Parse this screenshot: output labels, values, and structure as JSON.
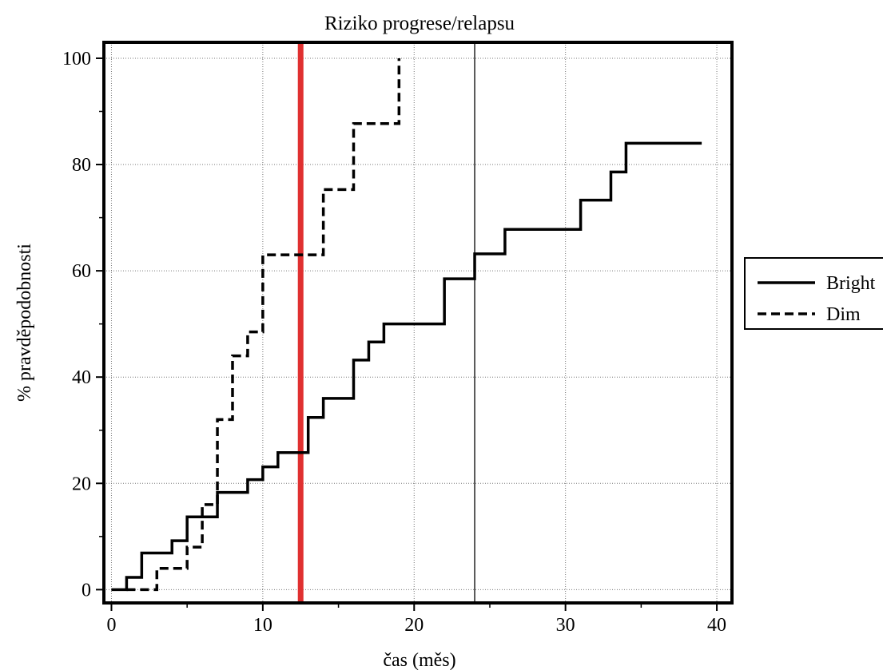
{
  "chart_data": {
    "type": "line",
    "step": true,
    "title": "Riziko progrese/relapsu",
    "xlabel": "čas (měs)",
    "ylabel": "% pravděpodobnosti",
    "xlim": [
      -0.5,
      41
    ],
    "ylim": [
      -2.5,
      103
    ],
    "xticks": [
      0,
      10,
      20,
      30,
      40
    ],
    "yticks": [
      0,
      20,
      40,
      60,
      80,
      100
    ],
    "grid": true,
    "legend": {
      "placement": "right",
      "entries": [
        "Bright",
        "Dim"
      ]
    },
    "series": [
      {
        "name": "Bright",
        "line_style": "solid",
        "color": "#000000",
        "x": [
          0,
          1,
          2,
          4,
          5,
          7,
          9,
          10,
          11,
          12,
          13,
          14,
          16,
          17,
          18,
          22,
          24,
          26,
          31,
          33,
          34,
          39
        ],
        "y": [
          0,
          2.3,
          6.9,
          9.2,
          13.7,
          18.3,
          20.7,
          23.1,
          25.8,
          25.8,
          32.4,
          36.0,
          43.2,
          46.6,
          50.0,
          58.5,
          63.2,
          67.8,
          73.3,
          78.6,
          84.0,
          84.0
        ]
      },
      {
        "name": "Dim",
        "line_style": "dashed",
        "color": "#000000",
        "x": [
          1,
          3,
          5,
          6,
          7,
          8,
          9,
          10,
          14,
          16,
          19,
          19
        ],
        "y": [
          0,
          4.0,
          8.0,
          16.0,
          32.0,
          44.0,
          48.5,
          63.0,
          75.3,
          87.7,
          87.7,
          100
        ]
      }
    ],
    "reference_lines": [
      {
        "axis": "x",
        "value": 12.5,
        "color": "#e03030",
        "style": "thick"
      },
      {
        "axis": "x",
        "value": 24,
        "color": "#000000",
        "style": "thin"
      }
    ]
  }
}
